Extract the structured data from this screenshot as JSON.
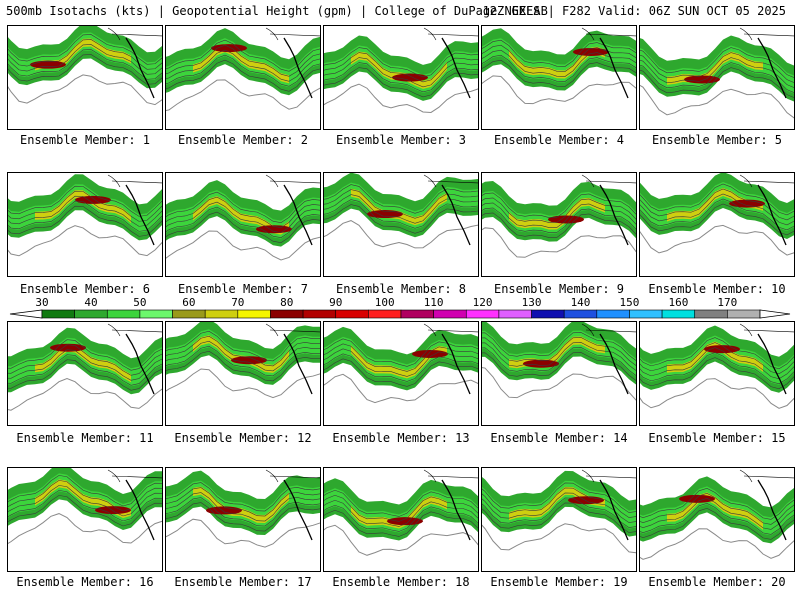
{
  "header": {
    "left": "500mb Isotachs (kts) | Geopotential Height (gpm) | College of DuPage NEXLAB",
    "right": "12Z GEFS | F282 Valid: 06Z SUN OCT 05 2025"
  },
  "colorbar": {
    "labels": [
      "30",
      "40",
      "50",
      "60",
      "70",
      "80",
      "90",
      "100",
      "110",
      "120",
      "130",
      "140",
      "150",
      "160",
      "170"
    ],
    "colors": [
      "#117a11",
      "#2ea82e",
      "#3cd43c",
      "#6cf76c",
      "#9a9a1a",
      "#cfcf10",
      "#f5f500",
      "#8b0000",
      "#b20000",
      "#d80000",
      "#ff2020",
      "#b00060",
      "#d000b0",
      "#ff30ff",
      "#e060ff",
      "#1010b0",
      "#1e50e0",
      "#2090ff",
      "#30c0ff",
      "#00e0e0",
      "#808080",
      "#b0b0b0"
    ]
  },
  "panels": [
    {
      "label": "Ensemble Member: 1"
    },
    {
      "label": "Ensemble Member: 2"
    },
    {
      "label": "Ensemble Member: 3"
    },
    {
      "label": "Ensemble Member: 4"
    },
    {
      "label": "Ensemble Member: 5"
    },
    {
      "label": "Ensemble Member: 6"
    },
    {
      "label": "Ensemble Member: 7"
    },
    {
      "label": "Ensemble Member: 8"
    },
    {
      "label": "Ensemble Member: 9"
    },
    {
      "label": "Ensemble Member: 10"
    },
    {
      "label": "Ensemble Member: 11"
    },
    {
      "label": "Ensemble Member: 12"
    },
    {
      "label": "Ensemble Member: 13"
    },
    {
      "label": "Ensemble Member: 14"
    },
    {
      "label": "Ensemble Member: 15"
    },
    {
      "label": "Ensemble Member: 16"
    },
    {
      "label": "Ensemble Member: 17"
    },
    {
      "label": "Ensemble Member: 18"
    },
    {
      "label": "Ensemble Member: 19"
    },
    {
      "label": "Ensemble Member: 20"
    }
  ]
}
